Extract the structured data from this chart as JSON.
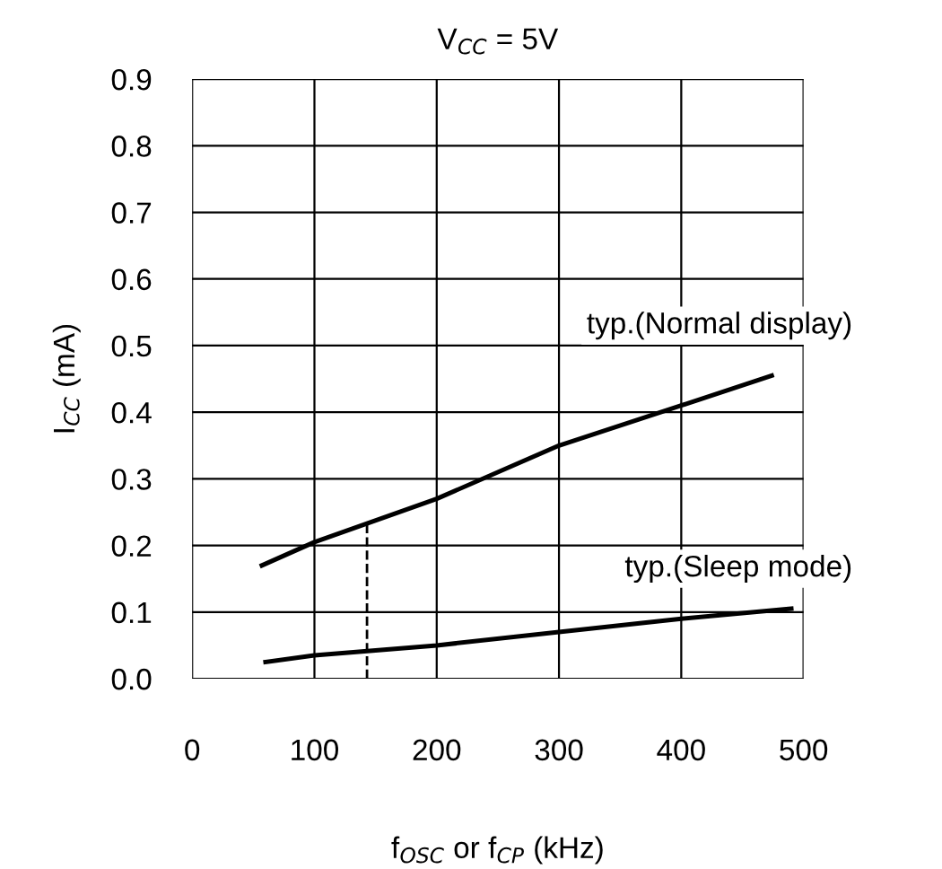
{
  "chart_data": {
    "type": "line",
    "title": "V$_{CC}$ = 5V",
    "xlabel": "f$_{OSC}$ or f$_{CP}$ (kHz)",
    "ylabel": "I$_{CC}$ (mA)",
    "x": [
      57,
      100,
      200,
      300,
      400,
      474
    ],
    "series": [
      {
        "name": "typ.(Normal display)",
        "color": "#000000",
        "values": [
          0.17,
          0.205,
          0.27,
          0.35,
          0.41,
          0.455
        ]
      },
      {
        "name": "typ.(Sleep mode)",
        "color": "#000000",
        "x": [
          60,
          100,
          200,
          300,
          400,
          490
        ],
        "values": [
          0.025,
          0.035,
          0.05,
          0.07,
          0.09,
          0.105
        ]
      }
    ],
    "xlim": [
      0,
      500
    ],
    "ylim": [
      0,
      0.9
    ],
    "xticks": [
      0,
      100,
      200,
      300,
      400,
      500
    ],
    "yticks": [
      {
        "value": 0,
        "label": "0.0"
      },
      {
        "value": 0.1,
        "label": "0.1"
      },
      {
        "value": 0.2,
        "label": "0.2"
      },
      {
        "value": 0.3,
        "label": "0.3"
      },
      {
        "value": 0.4,
        "label": "0.4"
      },
      {
        "value": 0.5,
        "label": "0.5"
      },
      {
        "value": 0.6,
        "label": "0.6"
      },
      {
        "value": 0.7,
        "label": "0.7"
      },
      {
        "value": 0.8,
        "label": "0.8"
      },
      {
        "value": 0.9,
        "label": "0.9"
      }
    ],
    "ref_lines": [
      {
        "axis": "x",
        "value": 143,
        "line_style": "dashed",
        "color": "#000000"
      }
    ],
    "grid": true,
    "legend": false,
    "marker": "none",
    "line_style": "solid"
  }
}
